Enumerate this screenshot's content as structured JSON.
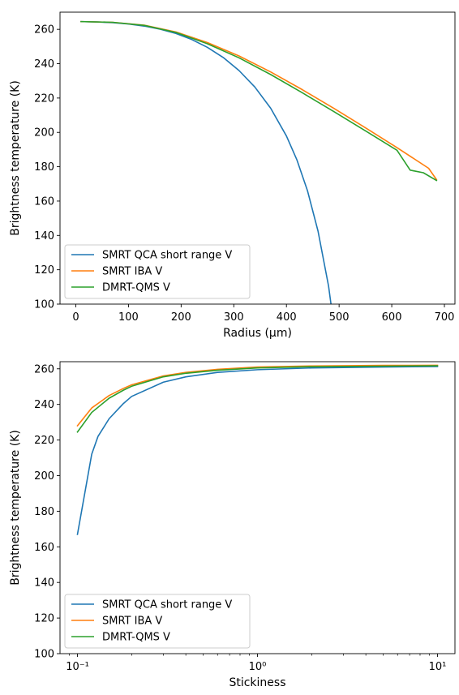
{
  "chart_data": [
    {
      "type": "line",
      "xlabel": "Radius (μm)",
      "ylabel": "Brightness temperature (K)",
      "xlim": [
        -30,
        720
      ],
      "ylim": [
        100,
        270
      ],
      "xscale": "linear",
      "xticks": [
        0,
        100,
        200,
        300,
        400,
        500,
        600,
        700
      ],
      "xtick_labels": [
        "0",
        "100",
        "200",
        "300",
        "400",
        "500",
        "600",
        "700"
      ],
      "yticks": [
        100,
        120,
        140,
        160,
        180,
        200,
        220,
        240,
        260
      ],
      "ytick_labels": [
        "100",
        "120",
        "140",
        "160",
        "180",
        "200",
        "220",
        "240",
        "260"
      ],
      "grid": false,
      "legend_position": "lower-left",
      "series": [
        {
          "name": "SMRT QCA short range V",
          "color": "#1f77b4",
          "x": [
            10,
            40,
            70,
            100,
            130,
            160,
            190,
            220,
            250,
            280,
            310,
            340,
            370,
            400,
            420,
            440,
            460,
            480,
            500
          ],
          "y": [
            264.5,
            264.3,
            263.9,
            263.1,
            261.9,
            260.1,
            257.6,
            254.1,
            249.5,
            243.6,
            236.0,
            226.4,
            214.1,
            197.9,
            183.9,
            166.0,
            142.5,
            110.5,
            65.0
          ]
        },
        {
          "name": "SMRT IBA V",
          "color": "#ff7f0e",
          "x": [
            10,
            70,
            130,
            190,
            250,
            310,
            370,
            430,
            490,
            550,
            610,
            670,
            685
          ],
          "y": [
            264.5,
            264.1,
            262.4,
            258.5,
            252.3,
            244.5,
            235.2,
            224.9,
            214.0,
            202.7,
            191.1,
            179.1,
            172.5
          ]
        },
        {
          "name": "DMRT-QMS V",
          "color": "#2ca02c",
          "x": [
            10,
            70,
            130,
            190,
            250,
            310,
            370,
            430,
            490,
            550,
            610,
            635,
            660,
            685
          ],
          "y": [
            264.5,
            264.1,
            262.3,
            258.2,
            251.6,
            243.4,
            233.7,
            223.1,
            212.1,
            200.9,
            189.6,
            178.0,
            176.5,
            172.0
          ]
        }
      ]
    },
    {
      "type": "line",
      "xlabel": "Stickiness",
      "ylabel": "Brightness temperature (K)",
      "xlim": [
        0.08,
        12.5
      ],
      "ylim": [
        100,
        264
      ],
      "xscale": "log",
      "xticks": [
        0.1,
        1,
        10
      ],
      "xtick_labels": [
        "10⁻¹",
        "10⁰",
        "10¹"
      ],
      "yticks": [
        100,
        120,
        140,
        160,
        180,
        200,
        220,
        240,
        260
      ],
      "ytick_labels": [
        "100",
        "120",
        "140",
        "160",
        "180",
        "200",
        "220",
        "240",
        "260"
      ],
      "grid": false,
      "legend_position": "lower-left",
      "series": [
        {
          "name": "SMRT QCA short range V",
          "color": "#1f77b4",
          "x": [
            0.1,
            0.12,
            0.13,
            0.15,
            0.18,
            0.2,
            0.3,
            0.4,
            0.6,
            1,
            2,
            5,
            10
          ],
          "y": [
            167,
            212,
            222,
            232,
            240.5,
            244.5,
            252.5,
            255.5,
            258,
            259.5,
            260.5,
            261,
            261.3
          ]
        },
        {
          "name": "SMRT IBA V",
          "color": "#ff7f0e",
          "x": [
            0.1,
            0.12,
            0.15,
            0.18,
            0.2,
            0.3,
            0.4,
            0.6,
            1,
            2,
            5,
            10
          ],
          "y": [
            228,
            238,
            245,
            249,
            251,
            256,
            258,
            259.7,
            261,
            261.6,
            261.9,
            262
          ]
        },
        {
          "name": "DMRT-QMS V",
          "color": "#2ca02c",
          "x": [
            0.1,
            0.12,
            0.15,
            0.18,
            0.2,
            0.3,
            0.4,
            0.6,
            1,
            2,
            5,
            10
          ],
          "y": [
            224.5,
            235.5,
            243.5,
            248,
            250.2,
            255.5,
            257.5,
            259.2,
            260.5,
            261.2,
            261.5,
            261.7
          ]
        }
      ]
    }
  ]
}
